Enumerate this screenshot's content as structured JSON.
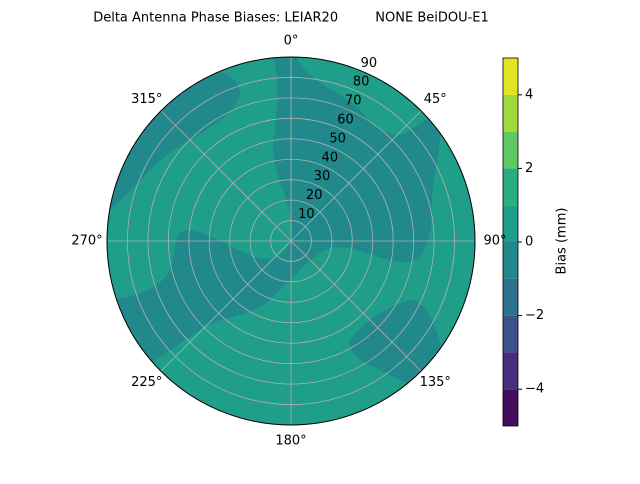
{
  "chart_data": {
    "type": "polar-contour",
    "title": "Delta Antenna Phase Biases: LEIAR20         NONE BeiDOU-E1",
    "rlim": [
      0,
      90
    ],
    "rticks": [
      10,
      20,
      30,
      40,
      50,
      60,
      70,
      80,
      90
    ],
    "thetaticks": [
      {
        "value": 0,
        "label": "0°"
      },
      {
        "value": 45,
        "label": "45°"
      },
      {
        "value": 90,
        "label": "90°"
      },
      {
        "value": 135,
        "label": "135°"
      },
      {
        "value": 180,
        "label": "180°"
      },
      {
        "value": 225,
        "label": "225°"
      },
      {
        "value": 270,
        "label": "270°"
      },
      {
        "value": 315,
        "label": "315°"
      }
    ],
    "grid": true,
    "colorbar": {
      "label": "Bias (mm)",
      "levels": [
        -5,
        -4,
        -3,
        -2,
        -1,
        0,
        1,
        2,
        3,
        4,
        5
      ],
      "colors": [
        "#450e5c",
        "#472d7b",
        "#3b528b",
        "#2c728e",
        "#21898c",
        "#1f9e89",
        "#28ae80",
        "#5ec962",
        "#9fda3a",
        "#e0e51f"
      ],
      "ticks": [
        {
          "value": -4,
          "label": "−4"
        },
        {
          "value": -2,
          "label": "−2"
        },
        0,
        2,
        4
      ]
    }
  }
}
